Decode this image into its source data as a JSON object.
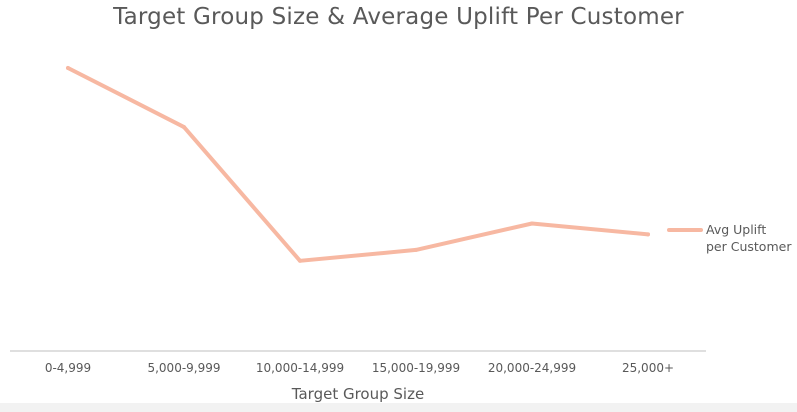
{
  "chart_data": {
    "type": "line",
    "title": "Target Group Size & Average Uplift Per Customer",
    "xlabel": "Target Group Size",
    "ylabel": "",
    "categories": [
      "0-4,999",
      "5,000-9,999",
      "10,000-14,999",
      "15,000-19,999",
      "20,000-24,999",
      "25,000+"
    ],
    "series": [
      {
        "name": "Avg Uplift per Customer",
        "values": [
          91,
          72,
          29,
          32.5,
          41,
          37.5
        ]
      }
    ],
    "ylim": [
      0,
      100
    ],
    "y_axis_labels_shown": false,
    "grid": false,
    "legend": "right",
    "colors": {
      "line": "#f7b8a2",
      "axis": "#bfbfbf",
      "text": "#595959"
    }
  }
}
